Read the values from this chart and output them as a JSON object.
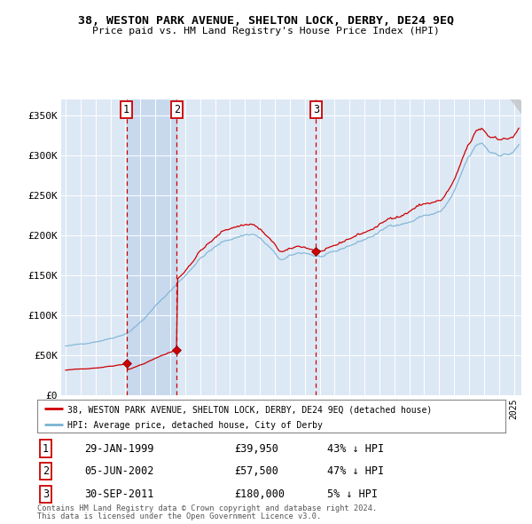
{
  "title": "38, WESTON PARK AVENUE, SHELTON LOCK, DERBY, DE24 9EQ",
  "subtitle": "Price paid vs. HM Land Registry's House Price Index (HPI)",
  "hpi_color": "#7ab3d4",
  "price_color": "#cc0000",
  "plot_bg": "#dde8f5",
  "span_color": "#c8d9ee",
  "transactions": [
    {
      "num": 1,
      "date_label": "29-JAN-1999",
      "date_x": 1999.07,
      "price": 39950,
      "pct": "43%"
    },
    {
      "num": 2,
      "date_label": "05-JUN-2002",
      "date_x": 2002.43,
      "price": 57500,
      "pct": "47%"
    },
    {
      "num": 3,
      "date_label": "30-SEP-2011",
      "date_x": 2011.75,
      "price": 180000,
      "pct": "5%"
    }
  ],
  "legend_line1": "38, WESTON PARK AVENUE, SHELTON LOCK, DERBY, DE24 9EQ (detached house)",
  "legend_line2": "HPI: Average price, detached house, City of Derby",
  "footnote1": "Contains HM Land Registry data © Crown copyright and database right 2024.",
  "footnote2": "This data is licensed under the Open Government Licence v3.0.",
  "ylim": [
    0,
    370000
  ],
  "yticks": [
    0,
    50000,
    100000,
    150000,
    200000,
    250000,
    300000,
    350000
  ],
  "ytick_labels": [
    "£0",
    "£50K",
    "£100K",
    "£150K",
    "£200K",
    "£250K",
    "£300K",
    "£350K"
  ],
  "xlim_start": 1994.7,
  "xlim_end": 2025.5
}
